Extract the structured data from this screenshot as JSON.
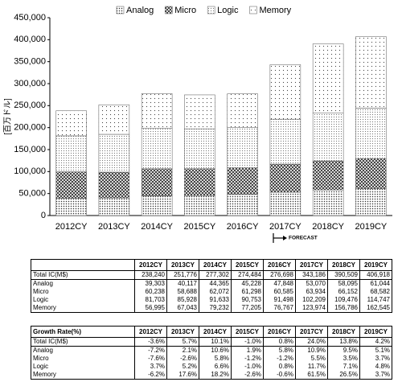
{
  "chart_data": {
    "type": "stacked-bar",
    "categories": [
      "2012CY",
      "2013CY",
      "2014CY",
      "2015CY",
      "2016CY",
      "2017CY",
      "2018CY",
      "2019CY"
    ],
    "series": [
      {
        "name": "Analog",
        "color": "#333333",
        "pattern": "dots",
        "values": [
          39303,
          40117,
          44365,
          45228,
          47848,
          53070,
          58095,
          61044
        ]
      },
      {
        "name": "Micro",
        "color": "#222222",
        "pattern": "crosshatch",
        "values": [
          60238,
          58688,
          62072,
          61298,
          60585,
          63934,
          66152,
          68582
        ]
      },
      {
        "name": "Logic",
        "color": "#777777",
        "pattern": "dots-light",
        "values": [
          81703,
          85928,
          91633,
          90753,
          91498,
          102209,
          109476,
          114747
        ]
      },
      {
        "name": "Memory",
        "color": "#444444",
        "pattern": "dots-sparse",
        "values": [
          56995,
          67043,
          79232,
          77205,
          76767,
          123974,
          156786,
          162545
        ]
      }
    ],
    "y_label": "[百万ドル]",
    "ylim": [
      0,
      450000
    ],
    "yticks": [
      0,
      {
        "value": 50000,
        "label": "50,000"
      },
      {
        "value": 100000,
        "label": "100,000"
      },
      {
        "value": 150000,
        "label": "150,000"
      },
      {
        "value": 200000,
        "label": "200,000"
      },
      {
        "value": 250000,
        "label": "250,000"
      },
      {
        "value": 300000,
        "label": "300,000"
      },
      {
        "value": 350000,
        "label": "350,000"
      },
      {
        "value": 400000,
        "label": "400,000"
      },
      {
        "value": 450000,
        "label": "450,000"
      }
    ],
    "grid": false,
    "annotation": "FORECAST"
  },
  "tables": [
    {
      "header": [
        "2012CY",
        "2013CY",
        "2014CY",
        "2015CY",
        "2016CY",
        "2017CY",
        "2018CY",
        "2019CY"
      ],
      "rows": [
        [
          "Total IC(M$)",
          "238,240",
          "251,776",
          "277,302",
          "274,484",
          "276,698",
          "343,186",
          "390,509",
          "406,918"
        ],
        [
          "Analog",
          "39,303",
          "40,117",
          "44,365",
          "45,228",
          "47,848",
          "53,070",
          "58,095",
          "61,044"
        ],
        [
          "Micro",
          "60,238",
          "58,688",
          "62,072",
          "61,298",
          "60,585",
          "63,934",
          "66,152",
          "68,582"
        ],
        [
          "Logic",
          "81,703",
          "85,928",
          "91,633",
          "90,753",
          "91,498",
          "102,209",
          "109,476",
          "114,747"
        ],
        [
          "Memory",
          "56,995",
          "67,043",
          "79,232",
          "77,205",
          "76,767",
          "123,974",
          "156,786",
          "162,545"
        ]
      ]
    },
    {
      "header": [
        "Growth Rate(%)",
        "2012CY",
        "2013CY",
        "2014CY",
        "2015CY",
        "2016CY",
        "2017CY",
        "2018CY",
        "2019CY"
      ],
      "rows": [
        [
          "Total IC(M$)",
          "-3.6%",
          "5.7%",
          "10.1%",
          "-1.0%",
          "0.8%",
          "24.0%",
          "13.8%",
          "4.2%"
        ],
        [
          "Analog",
          "-7.2%",
          "2.1%",
          "10.6%",
          "1.9%",
          "5.8%",
          "10.9%",
          "9.5%",
          "5.1%"
        ],
        [
          "Micro",
          "-7.6%",
          "-2.6%",
          "5.8%",
          "-1.2%",
          "-1.2%",
          "5.5%",
          "3.5%",
          "3.7%"
        ],
        [
          "Logic",
          "3.7%",
          "5.2%",
          "6.6%",
          "-1.0%",
          "0.8%",
          "11.7%",
          "7.1%",
          "4.8%"
        ],
        [
          "Memory",
          "-6.2%",
          "17.6%",
          "18.2%",
          "-2.6%",
          "-0.6%",
          "61.5%",
          "26.5%",
          "3.7%"
        ]
      ]
    }
  ]
}
